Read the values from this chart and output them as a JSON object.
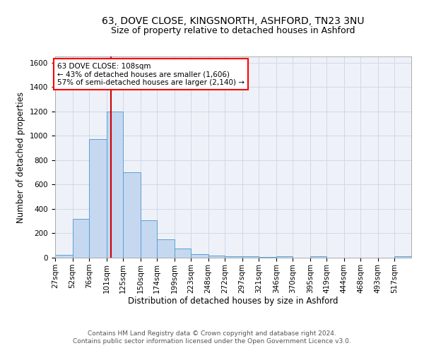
{
  "title_line1": "63, DOVE CLOSE, KINGSNORTH, ASHFORD, TN23 3NU",
  "title_line2": "Size of property relative to detached houses in Ashford",
  "xlabel": "Distribution of detached houses by size in Ashford",
  "ylabel": "Number of detached properties",
  "footer_line1": "Contains HM Land Registry data © Crown copyright and database right 2024.",
  "footer_line2": "Contains public sector information licensed under the Open Government Licence v3.0.",
  "annotation_line1": "63 DOVE CLOSE: 108sqm",
  "annotation_line2": "← 43% of detached houses are smaller (1,606)",
  "annotation_line3": "57% of semi-detached houses are larger (2,140) →",
  "bar_labels": [
    "27sqm",
    "52sqm",
    "76sqm",
    "101sqm",
    "125sqm",
    "150sqm",
    "174sqm",
    "199sqm",
    "223sqm",
    "248sqm",
    "272sqm",
    "297sqm",
    "321sqm",
    "346sqm",
    "370sqm",
    "395sqm",
    "419sqm",
    "444sqm",
    "468sqm",
    "493sqm",
    "517sqm"
  ],
  "bar_values": [
    25,
    320,
    970,
    1200,
    700,
    305,
    153,
    75,
    30,
    20,
    12,
    10,
    8,
    12,
    0,
    12,
    0,
    0,
    0,
    0,
    12
  ],
  "bar_color": "#c5d8f0",
  "bar_edge_color": "#5a9fd4",
  "bin_edges": [
    27,
    52,
    76,
    101,
    125,
    150,
    174,
    199,
    223,
    248,
    272,
    297,
    321,
    346,
    370,
    395,
    419,
    444,
    468,
    493,
    517,
    541
  ],
  "vline_color": "#cc0000",
  "vline_x": 108,
  "ylim": [
    0,
    1650
  ],
  "yticks": [
    0,
    200,
    400,
    600,
    800,
    1000,
    1200,
    1400,
    1600
  ],
  "grid_color": "#d0d8e8",
  "bg_color": "#eef2f8",
  "title_fontsize": 10,
  "subtitle_fontsize": 9,
  "axis_label_fontsize": 8.5,
  "tick_fontsize": 7.5,
  "annotation_fontsize": 7.5,
  "footer_fontsize": 6.5
}
